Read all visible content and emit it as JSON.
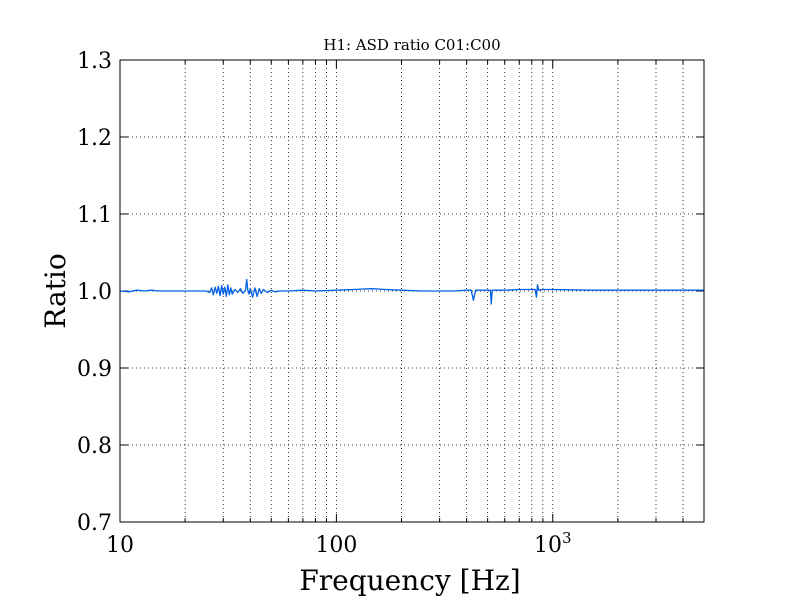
{
  "chart_data": {
    "type": "line",
    "title": "H1:  ASD ratio C01:C00",
    "xlabel": "Frequency [Hz]",
    "ylabel": "Ratio",
    "xscale": "log",
    "xlim": [
      10,
      5000
    ],
    "ylim": [
      0.7,
      1.3
    ],
    "grid": true,
    "line_color": "#0060e6",
    "x_tick_labels": [
      {
        "value": 10,
        "text": "10"
      },
      {
        "value": 100,
        "text": "100"
      },
      {
        "value": 1000,
        "base": "10",
        "exp": "3"
      }
    ],
    "y_ticks": [
      0.7,
      0.8,
      0.9,
      1.0,
      1.1,
      1.2,
      1.3
    ],
    "y_tick_labels": [
      "0.7",
      "0.8",
      "0.9",
      "1.0",
      "1.1",
      "1.2",
      "1.3"
    ],
    "series": [
      {
        "x": [
          10,
          11,
          12,
          13,
          14,
          15,
          17,
          20,
          23,
          25,
          26,
          26.5,
          27,
          27.5,
          28,
          28.5,
          29,
          29.5,
          30,
          30.5,
          31,
          31.5,
          32,
          32.5,
          33,
          34,
          35,
          36,
          37,
          38,
          38.5,
          39,
          39.5,
          40,
          41,
          42,
          43,
          44,
          45,
          46,
          48,
          50,
          52,
          55,
          60,
          70,
          80,
          100,
          120,
          145,
          170,
          200,
          250,
          300,
          350,
          400,
          420,
          430,
          440,
          450,
          500,
          515,
          520,
          525,
          540,
          600,
          700,
          800,
          830,
          840,
          850,
          860,
          900,
          1000,
          1500,
          2000,
          3000,
          4000,
          5000
        ],
        "y": [
          1.0,
          0.999,
          1.001,
          1.0,
          1.001,
          1.0,
          1.0,
          1.0,
          1.0,
          1.0,
          0.998,
          1.004,
          0.995,
          1.005,
          0.997,
          1.006,
          0.994,
          1.007,
          0.996,
          1.005,
          0.993,
          1.008,
          0.995,
          1.004,
          0.996,
          1.002,
          0.998,
          1.003,
          0.997,
          1.001,
          1.015,
          1.0,
          0.996,
          1.003,
          0.992,
          1.004,
          0.993,
          1.003,
          0.997,
          1.002,
          0.998,
          1.001,
          0.999,
          1.0,
          1.0,
          1.001,
          1.0,
          1.001,
          1.002,
          1.003,
          1.002,
          1.001,
          1.0,
          1.0,
          1.0,
          1.001,
          1.001,
          0.988,
          1.001,
          1.001,
          1.001,
          1.001,
          0.983,
          1.001,
          1.001,
          1.001,
          1.002,
          1.002,
          1.002,
          0.992,
          1.008,
          1.001,
          1.002,
          1.002,
          1.001,
          1.001,
          1.001,
          1.001,
          1.001
        ]
      }
    ]
  }
}
